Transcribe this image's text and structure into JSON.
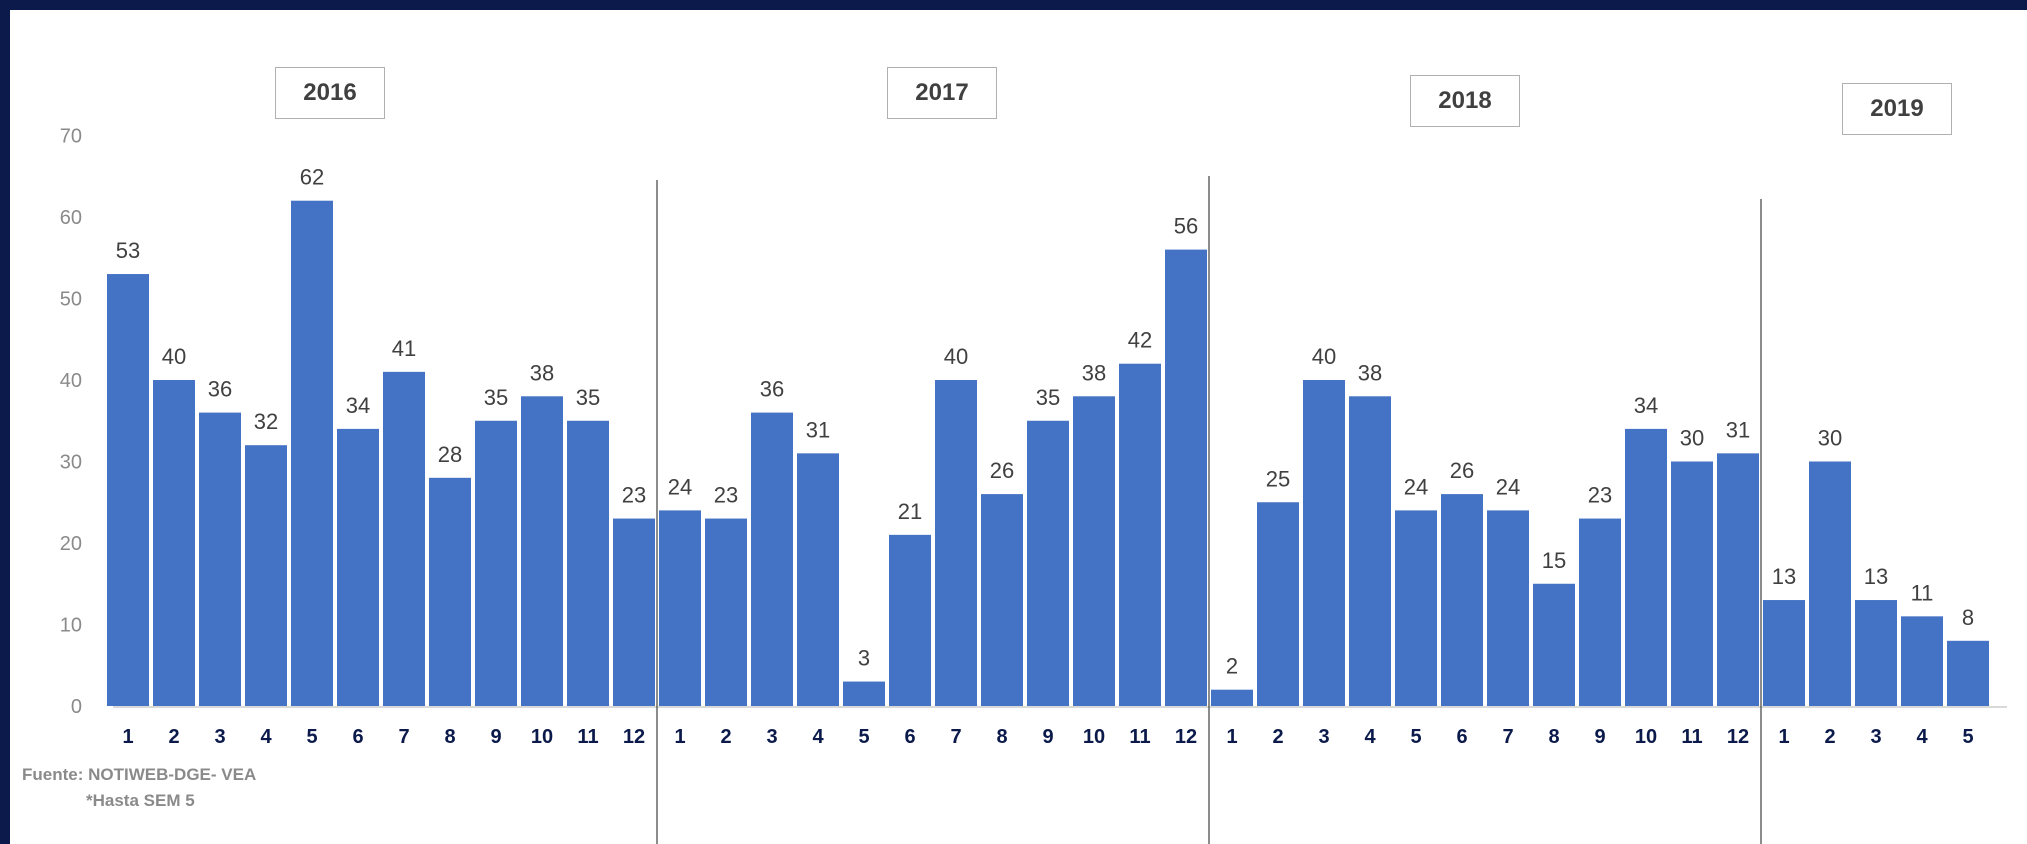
{
  "chart_data": {
    "type": "bar",
    "ylim": [
      0,
      70
    ],
    "yticks": [
      0,
      10,
      20,
      30,
      40,
      50,
      60,
      70
    ],
    "grid": false,
    "bar_color": "#4472c4",
    "year_groups": [
      {
        "label": "2016",
        "categories": [
          "1",
          "2",
          "3",
          "4",
          "5",
          "6",
          "7",
          "8",
          "9",
          "10",
          "11",
          "12"
        ],
        "values": [
          53,
          40,
          36,
          32,
          62,
          34,
          41,
          28,
          35,
          38,
          35,
          23
        ]
      },
      {
        "label": "2017",
        "categories": [
          "1",
          "2",
          "3",
          "4",
          "5",
          "6",
          "7",
          "8",
          "9",
          "10",
          "11",
          "12"
        ],
        "values": [
          24,
          23,
          36,
          31,
          3,
          21,
          40,
          26,
          35,
          38,
          42,
          56
        ]
      },
      {
        "label": "2018",
        "categories": [
          "1",
          "2",
          "3",
          "4",
          "5",
          "6",
          "7",
          "8",
          "9",
          "10",
          "11",
          "12"
        ],
        "values": [
          2,
          25,
          40,
          38,
          24,
          26,
          24,
          15,
          23,
          34,
          30,
          31
        ]
      },
      {
        "label": "2019",
        "categories": [
          "1",
          "2",
          "3",
          "4",
          "5"
        ],
        "values": [
          13,
          30,
          13,
          11,
          8
        ]
      }
    ]
  },
  "source_note": "Fuente: NOTIWEB-DGE- VEA",
  "footnote": "*Hasta SEM 5"
}
